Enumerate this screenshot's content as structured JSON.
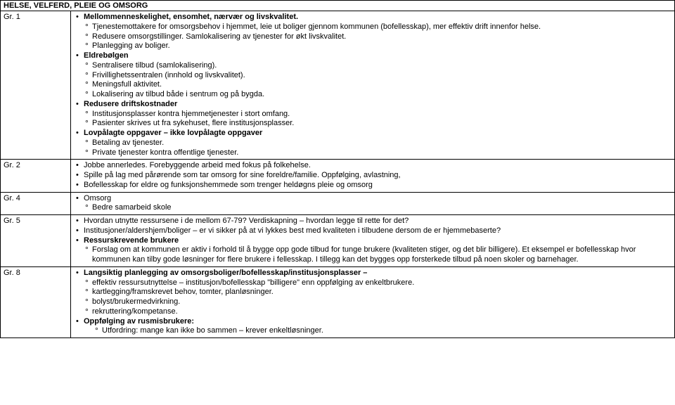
{
  "header": "HELSE, VELFERD, PLEIE OG OMSORG",
  "rows": [
    {
      "label": "Gr. 1",
      "items": [
        {
          "lvl": 1,
          "bold": true,
          "t": "Mellommenneskelighet, ensomhet, nærvær og livskvalitet."
        },
        {
          "lvl": 2,
          "t": "Tjenestemottakere for omsorgsbehov i hjemmet, leie ut boliger gjennom kommunen (bofellesskap), mer effektiv drift innenfor helse."
        },
        {
          "lvl": 2,
          "t": "Redusere omsorgstillinger. Samlokalisering av tjenester for økt livskvalitet."
        },
        {
          "lvl": 2,
          "t": "Planlegging av boliger."
        },
        {
          "lvl": 1,
          "bold": true,
          "t": "Eldrebølgen"
        },
        {
          "lvl": 2,
          "t": "Sentralisere tilbud (samlokalisering)."
        },
        {
          "lvl": 2,
          "t": "Frivillighetssentralen (innhold og livskvalitet)."
        },
        {
          "lvl": 2,
          "t": "Meningsfull aktivitet."
        },
        {
          "lvl": 2,
          "t": "Lokalisering av tilbud både i sentrum og på bygda."
        },
        {
          "lvl": 1,
          "bold": true,
          "t": "Redusere driftskostnader"
        },
        {
          "lvl": 2,
          "t": "Institusjonsplasser kontra hjemmetjenester i stort omfang."
        },
        {
          "lvl": 2,
          "t": "Pasienter skrives ut fra sykehuset, flere institusjonsplasser."
        },
        {
          "lvl": 1,
          "bold": true,
          "t": "Lovpålagte oppgaver – ikke lovpålagte oppgaver"
        },
        {
          "lvl": 2,
          "t": "Betaling av tjenester."
        },
        {
          "lvl": 2,
          "t": "Private tjenester kontra offentlige tjenester."
        }
      ]
    },
    {
      "label": "Gr. 2",
      "items": [
        {
          "lvl": 1,
          "t": "Jobbe annerledes. Forebyggende arbeid med fokus på folkehelse."
        },
        {
          "lvl": 1,
          "t": "Spille på lag med pårørende som tar omsorg for sine foreldre/familie. Oppfølging, avlastning,"
        },
        {
          "lvl": 1,
          "t": "Bofellesskap for eldre og funksjonshemmede som trenger heldøgns pleie og omsorg"
        }
      ]
    },
    {
      "label": "Gr. 4",
      "items": [
        {
          "lvl": 1,
          "t": "Omsorg"
        },
        {
          "lvl": 2,
          "t": "Bedre samarbeid skole"
        }
      ]
    },
    {
      "label": "Gr. 5",
      "items": [
        {
          "lvl": 1,
          "t": "Hvordan utnytte ressursene i de mellom 67-79? Verdiskapning – hvordan legge til rette for det?"
        },
        {
          "lvl": 1,
          "t": "Institusjoner/aldershjem/boliger – er vi sikker på at vi lykkes best med kvaliteten i tilbudene dersom de er hjemmebaserte?"
        },
        {
          "lvl": 1,
          "bold": true,
          "t": "Ressurskrevende brukere"
        },
        {
          "lvl": 2,
          "t": "Forslag om at kommunen er aktiv i forhold til å bygge opp gode tilbud for tunge brukere (kvaliteten stiger, og det blir billigere). Et eksempel er bofellesskap hvor kommunen kan tilby gode løsninger for flere brukere i fellesskap. I tillegg kan det bygges opp forsterkede tilbud på noen skoler og barnehager."
        }
      ]
    },
    {
      "label": "Gr. 8",
      "items": [
        {
          "lvl": 1,
          "bold": true,
          "t": "Langsiktig planlegging av omsorgsboliger/bofellesskap/institusjonsplasser –"
        },
        {
          "lvl": 2,
          "t": "effektiv ressursutnyttelse – institusjon/bofellesskap \"billigere\" enn oppfølging av enkeltbrukere."
        },
        {
          "lvl": 2,
          "t": "kartlegging/framskrevet behov, tomter, planløsninger."
        },
        {
          "lvl": 2,
          "t": "bolyst/brukermedvirkning."
        },
        {
          "lvl": 2,
          "t": "rekruttering/kompetanse."
        },
        {
          "lvl": 1,
          "bold": true,
          "t": "Oppfølging av rusmisbrukere:"
        },
        {
          "lvl": 3,
          "t": "Utfordring: mange kan ikke bo sammen – krever enkeltløsninger."
        }
      ]
    }
  ]
}
